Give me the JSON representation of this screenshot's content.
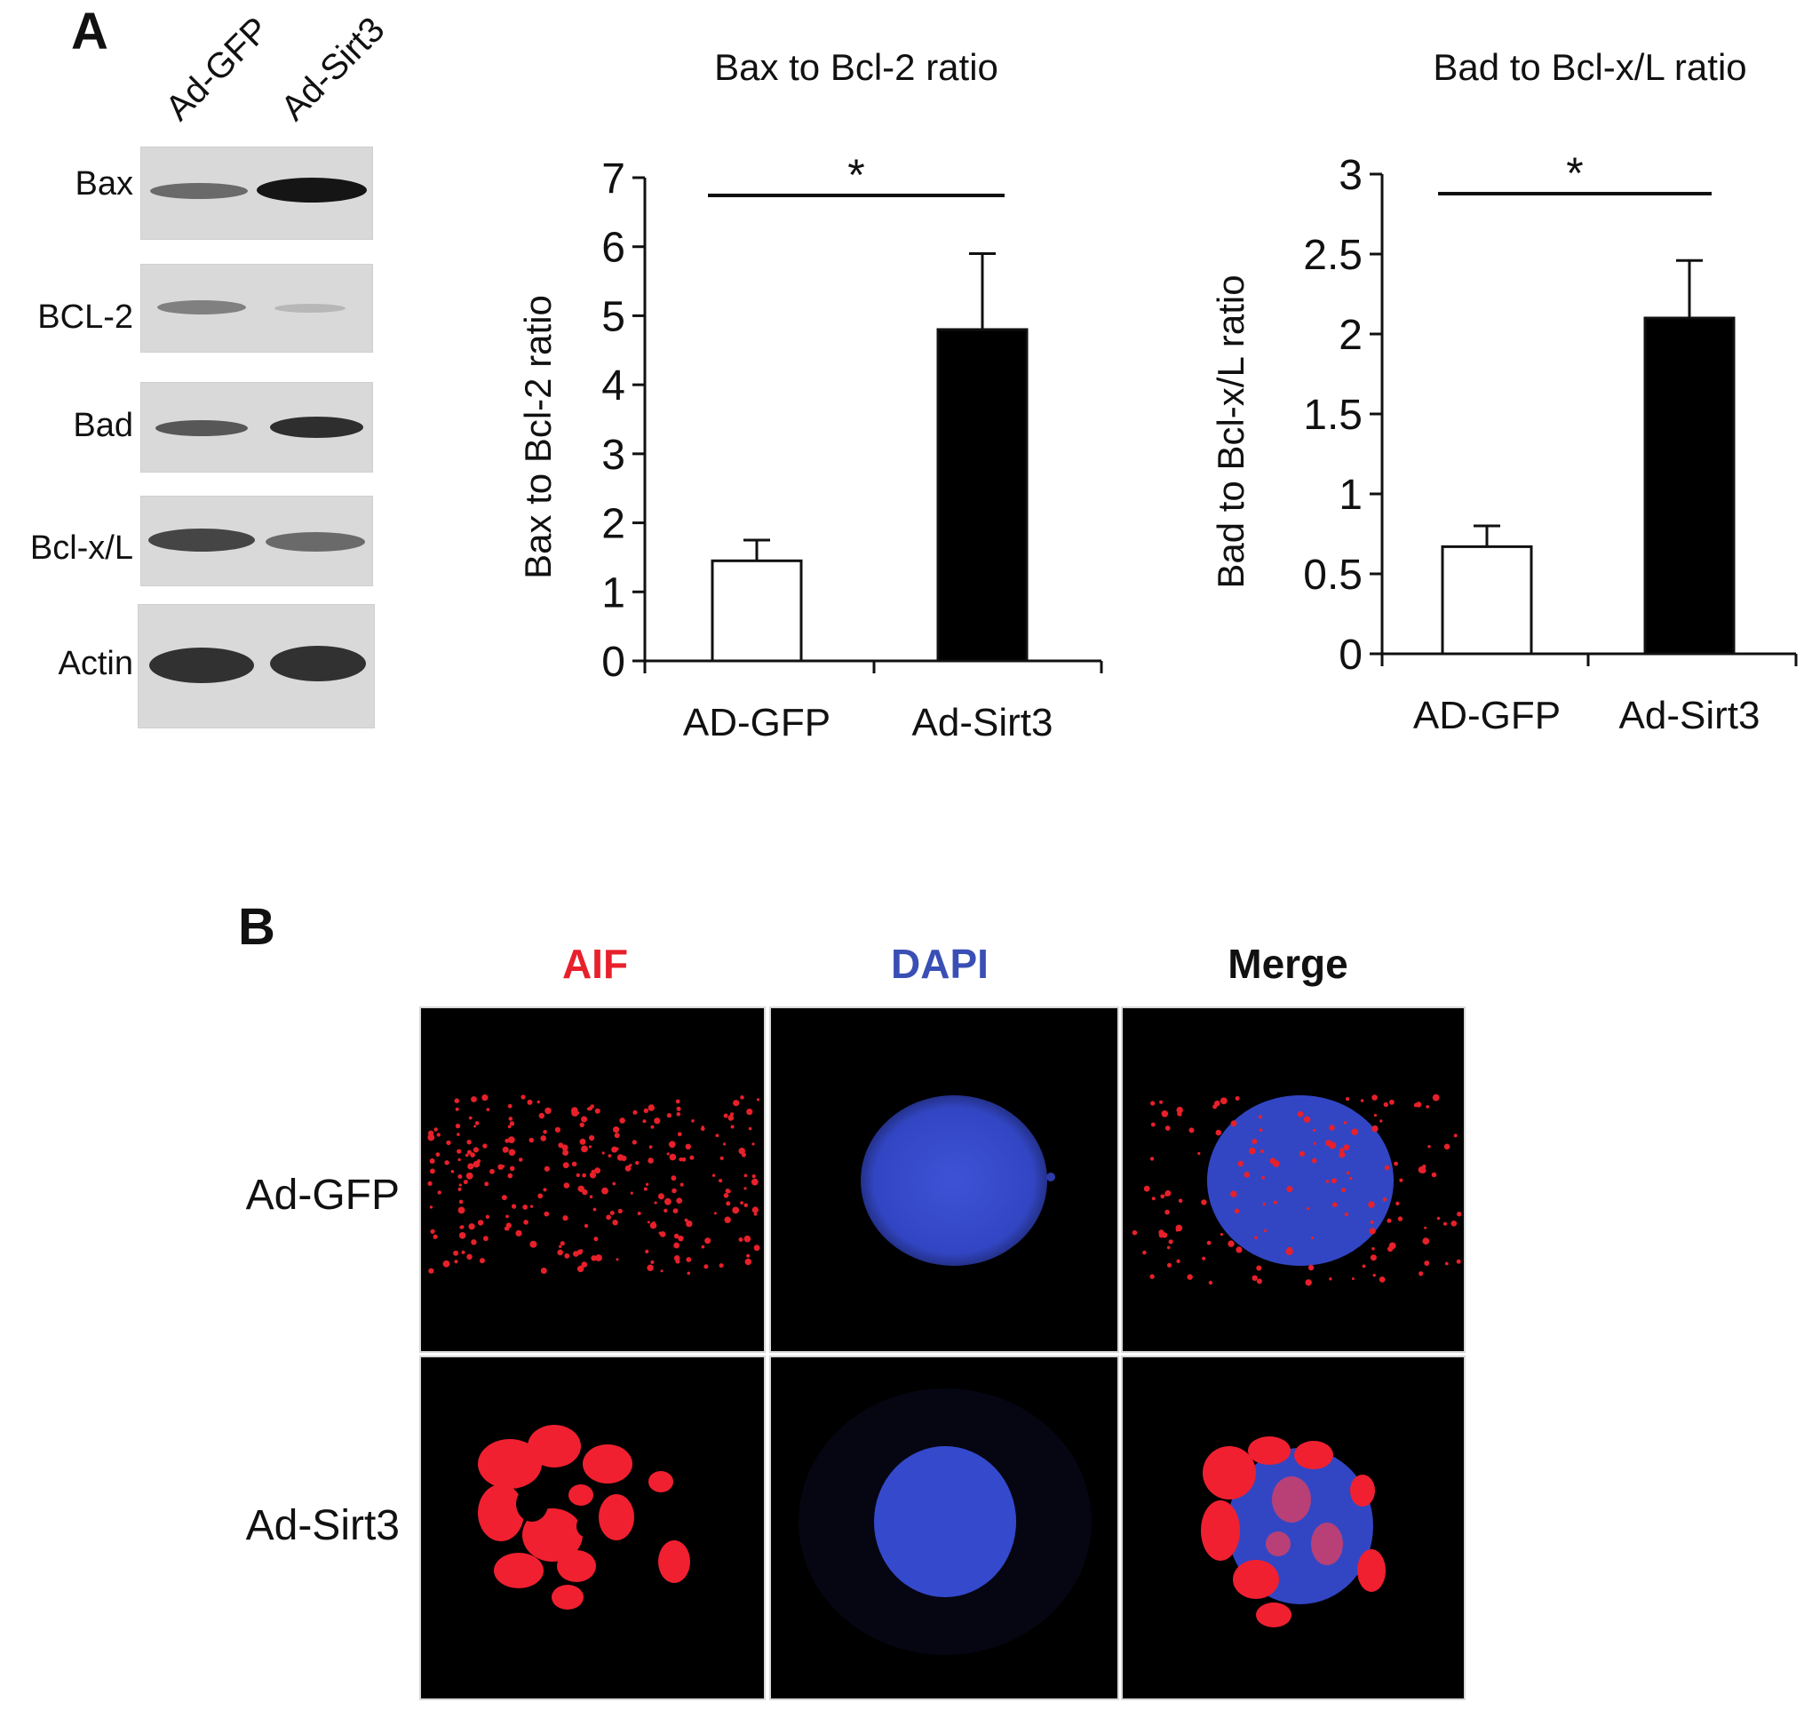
{
  "panel_a": {
    "letter": "A",
    "lanes": [
      "Ad-GFP",
      "Ad-Sirt3"
    ],
    "blots": [
      {
        "label": "Bax",
        "band_intensity": [
          0.55,
          0.95
        ]
      },
      {
        "label": "BCL-2",
        "band_intensity": [
          0.45,
          0.12
        ]
      },
      {
        "label": "Bad",
        "band_intensity": [
          0.6,
          0.85
        ]
      },
      {
        "label": "Bcl-x/L",
        "band_intensity": [
          0.75,
          0.6
        ]
      },
      {
        "label": "Actin",
        "band_intensity": [
          0.9,
          0.9
        ]
      }
    ]
  },
  "chart_data": [
    {
      "type": "bar",
      "title": "Bax to Bcl-2 ratio",
      "ylabel": "Bax to Bcl-2 ratio",
      "xlabel": "",
      "categories": [
        "AD-GFP",
        "Ad-Sirt3"
      ],
      "values": [
        1.45,
        4.8
      ],
      "errors": [
        0.3,
        1.1
      ],
      "bar_colors": [
        "#ffffff",
        "#000000"
      ],
      "ylim": [
        0,
        7
      ],
      "yticks": [
        "0",
        "1",
        "2",
        "3",
        "4",
        "5",
        "6",
        "7"
      ],
      "significance": "*"
    },
    {
      "type": "bar",
      "title": "Bad to Bcl-x/L ratio",
      "ylabel": "Bad to Bcl-x/L ratio",
      "xlabel": "",
      "categories": [
        "AD-GFP",
        "Ad-Sirt3"
      ],
      "values": [
        0.67,
        2.1
      ],
      "errors": [
        0.13,
        0.36
      ],
      "bar_colors": [
        "#ffffff",
        "#000000"
      ],
      "ylim": [
        0,
        3
      ],
      "yticks": [
        "0",
        "0.5",
        "1",
        "1.5",
        "2",
        "2.5",
        "3"
      ],
      "significance": "*"
    }
  ],
  "panel_b": {
    "letter": "B",
    "stains": [
      {
        "label": "AIF",
        "color": "#e8202a"
      },
      {
        "label": "DAPI",
        "color": "#3a4fb5"
      },
      {
        "label": "Merge",
        "color": "#111111"
      }
    ],
    "rows": [
      "Ad-GFP",
      "Ad-Sirt3"
    ]
  }
}
